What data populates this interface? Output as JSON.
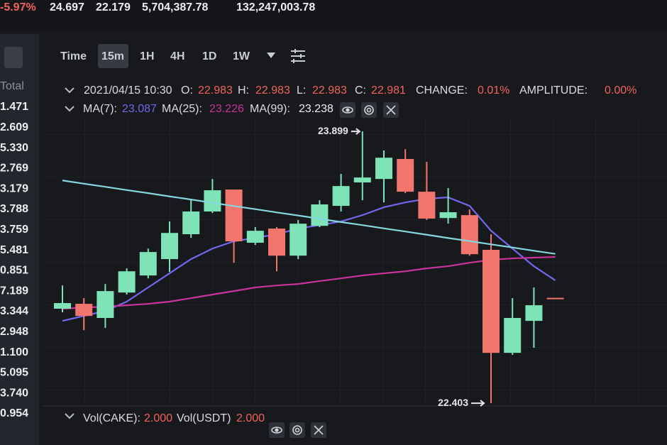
{
  "ticker": [
    "-5.97%",
    "24.697",
    "22.179",
    "5,704,387.78",
    "132,247,003.78"
  ],
  "toolbar": [
    "Time",
    "15m",
    "1H",
    "4H",
    "1D",
    "1W"
  ],
  "sidebar": {
    "title": "Total",
    "rows": [
      "1.471",
      "2.609",
      "5.330",
      "2.769",
      "3.179",
      "3.788",
      "3.759",
      "5.481",
      "0.851",
      "7.189",
      "3.344",
      "2.948",
      "1.100",
      "5.095",
      "3.740",
      "0.954"
    ]
  },
  "info": {
    "time": "2021/04/15 10:30",
    "fields": [
      {
        "label": "O:",
        "value": "22.983"
      },
      {
        "label": "H:",
        "value": "22.983"
      },
      {
        "label": "L:",
        "value": "22.983"
      },
      {
        "label": "C:",
        "value": "22.981"
      },
      {
        "label": "CHANGE:",
        "value": "0.01%"
      },
      {
        "label": "AMPLITUDE:",
        "value": "0.00%"
      }
    ]
  },
  "volume": [
    {
      "label": "Vol(CAKE):",
      "value": "2.000"
    },
    {
      "label": "Vol(USDT)",
      "value": "2.000"
    }
  ],
  "chart_data": {
    "type": "candlestick",
    "up_color": "#7fe3b8",
    "down_color": "#f2766e",
    "ylim": [
      22.376,
      23.958
    ],
    "open": [
      22.923,
      22.95,
      22.872,
      23.012,
      23.106,
      23.196,
      23.333,
      23.458,
      23.579,
      23.286,
      23.364,
      23.215,
      23.379,
      23.489,
      23.618,
      23.637,
      23.747,
      23.567,
      23.422,
      23.438,
      23.247,
      22.68,
      22.856,
      22.983
    ],
    "high": [
      23.051,
      22.981,
      23.059,
      23.145,
      23.254,
      23.403,
      23.528,
      23.637,
      23.579,
      23.372,
      23.372,
      23.411,
      23.52,
      23.665,
      23.899,
      23.794,
      23.801,
      23.731,
      23.587,
      23.469,
      23.333,
      22.981,
      23.04,
      22.983
    ],
    "low": [
      22.903,
      22.805,
      22.817,
      23.001,
      23.09,
      23.126,
      23.313,
      23.45,
      23.176,
      23.274,
      23.129,
      23.196,
      23.372,
      23.458,
      23.52,
      23.508,
      23.559,
      23.411,
      23.391,
      23.215,
      22.403,
      22.669,
      22.708,
      22.983
    ],
    "close": [
      22.954,
      22.883,
      23.02,
      23.129,
      23.235,
      23.34,
      23.458,
      23.575,
      23.294,
      23.352,
      23.215,
      23.391,
      23.497,
      23.598,
      23.645,
      23.754,
      23.567,
      23.419,
      23.454,
      23.223,
      22.68,
      22.872,
      22.942,
      22.981
    ],
    "series": [
      {
        "name": "MA(7):",
        "color": "#7366ee",
        "latest": 23.087,
        "values": [
          22.856,
          22.883,
          22.911,
          22.962,
          23.04,
          23.118,
          23.196,
          23.254,
          23.294,
          23.313,
          23.333,
          23.364,
          23.383,
          23.403,
          23.438,
          23.481,
          23.508,
          23.528,
          23.536,
          23.489,
          23.352,
          23.254,
          23.157,
          23.079
        ]
      },
      {
        "name": "MA(25):",
        "color": "#c9339a",
        "latest": 23.226,
        "values": [
          22.923,
          22.93,
          22.934,
          22.942,
          22.95,
          22.962,
          22.981,
          23.001,
          23.02,
          23.04,
          23.051,
          23.059,
          23.075,
          23.09,
          23.106,
          23.118,
          23.129,
          23.145,
          23.157,
          23.176,
          23.192,
          23.2,
          23.204,
          23.208
        ]
      },
      {
        "name": "MA(99):",
        "color": "#86d6de",
        "latest": 23.238,
        "values": [
          23.629,
          23.611,
          23.594,
          23.576,
          23.559,
          23.541,
          23.524,
          23.506,
          23.488,
          23.471,
          23.453,
          23.436,
          23.418,
          23.4,
          23.383,
          23.365,
          23.348,
          23.33,
          23.312,
          23.295,
          23.277,
          23.26,
          23.242,
          23.225
        ]
      }
    ]
  }
}
